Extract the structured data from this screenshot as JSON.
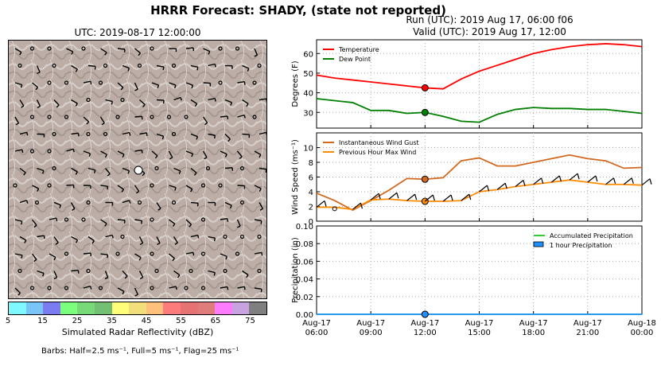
{
  "title": "HRRR Forecast: SHADY, (state not reported)",
  "run": "Run (UTC): 2019 Aug 17, 06:00 f06",
  "valid": "Valid (UTC): 2019 Aug 17, 12:00",
  "map": {
    "title": "UTC: 2019-08-17 12:00:00",
    "colorbar": {
      "label": "Simulated Radar Reflectivity (dBZ)",
      "colors": [
        "#7ff8ff",
        "#79c5f7",
        "#7b7cf2",
        "#7cff7c",
        "#77d977",
        "#73bf73",
        "#fefe7b",
        "#f3de7c",
        "#fec17b",
        "#fe7b7b",
        "#e67373",
        "#df7c7c",
        "#fd7bfd",
        "#c9a3e0",
        "#7f7f7f"
      ],
      "ticks": [
        "5",
        "15",
        "25",
        "35",
        "45",
        "55",
        "65",
        "75"
      ]
    },
    "barb_note": "Barbs: Half=2.5 ms⁻¹, Full=5 ms⁻¹, Flag=25 ms⁻¹"
  },
  "chart_data": [
    {
      "type": "line",
      "ylabel": "Degrees (F)",
      "ylim": [
        22,
        67
      ],
      "yticks": [
        "30",
        "40",
        "50",
        "60"
      ],
      "x": [
        "06:00",
        "07:00",
        "08:00",
        "09:00",
        "10:00",
        "11:00",
        "12:00",
        "13:00",
        "14:00",
        "15:00",
        "16:00",
        "17:00",
        "18:00",
        "19:00",
        "20:00",
        "21:00",
        "22:00",
        "23:00",
        "00:00"
      ],
      "series": [
        {
          "name": "Temperature",
          "color": "#ff0000",
          "values": [
            49,
            47.5,
            46.5,
            45.5,
            44.5,
            43.5,
            42.5,
            42,
            47,
            51,
            54,
            57,
            60,
            62,
            63.5,
            64.5,
            65,
            64.5,
            63.5
          ]
        },
        {
          "name": "Dew Point",
          "color": "#008000",
          "values": [
            37,
            36,
            35,
            31,
            31,
            29.5,
            30,
            28,
            25.5,
            25,
            29,
            31.5,
            32.5,
            32,
            32,
            31.5,
            31.5,
            30.5,
            29.5
          ]
        }
      ],
      "marker_time": "12:00",
      "grid": true
    },
    {
      "type": "line",
      "ylabel": "Wind Speed (ms⁻¹)",
      "ylim": [
        0,
        12
      ],
      "yticks": [
        "0",
        "2",
        "4",
        "6",
        "8",
        "10"
      ],
      "x": [
        "06:00",
        "07:00",
        "08:00",
        "09:00",
        "10:00",
        "11:00",
        "12:00",
        "13:00",
        "14:00",
        "15:00",
        "16:00",
        "17:00",
        "18:00",
        "19:00",
        "20:00",
        "21:00",
        "22:00",
        "23:00",
        "00:00"
      ],
      "series": [
        {
          "name": "Instantaneous Wind Gust",
          "color": "#d2691e",
          "values": [
            3.8,
            2.8,
            1.5,
            2.8,
            4.2,
            5.8,
            5.7,
            5.9,
            8.2,
            8.6,
            7.5,
            7.5,
            8,
            8.5,
            9,
            8.5,
            8.2,
            7.2,
            7.3
          ]
        },
        {
          "name": "Previous Hour Max Wind",
          "color": "#ff8c00",
          "values": [
            1.9,
            1.9,
            1.6,
            2.9,
            3.0,
            2.8,
            2.7,
            2.7,
            2.8,
            4.0,
            4.3,
            4.7,
            5.0,
            5.3,
            5.6,
            5.3,
            5.0,
            5.0,
            4.9
          ]
        }
      ],
      "marker_time": "12:00",
      "grid": true
    },
    {
      "type": "area",
      "ylabel": "Precipitation (in)",
      "ylim": [
        0,
        0.1
      ],
      "yticks": [
        "0.00",
        "0.02",
        "0.04",
        "0.06",
        "0.08",
        "0.10"
      ],
      "xtick_labels": [
        [
          "Aug-17",
          "06:00"
        ],
        [
          "Aug-17",
          "09:00"
        ],
        [
          "Aug-17",
          "12:00"
        ],
        [
          "Aug-17",
          "15:00"
        ],
        [
          "Aug-17",
          "18:00"
        ],
        [
          "Aug-17",
          "21:00"
        ],
        [
          "Aug-18",
          "00:00"
        ]
      ],
      "series": [
        {
          "name": "Accumulated Precipitation",
          "color": "#32cd32",
          "values": [
            0,
            0,
            0,
            0,
            0,
            0,
            0,
            0,
            0,
            0,
            0,
            0,
            0,
            0,
            0,
            0,
            0,
            0,
            0
          ]
        },
        {
          "name": "1 hour Precipitation",
          "color": "#1e90ff",
          "values": [
            0,
            0,
            0,
            0,
            0,
            0,
            0,
            0,
            0,
            0,
            0,
            0,
            0,
            0,
            0,
            0,
            0,
            0,
            0
          ]
        }
      ],
      "marker_time": "12:00",
      "grid": true
    }
  ]
}
